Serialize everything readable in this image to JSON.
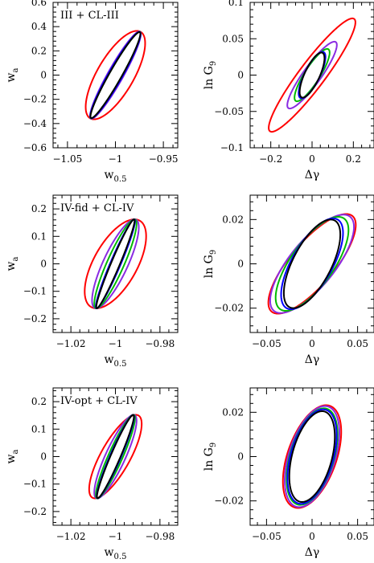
{
  "chart_data": [
    {
      "type": "scatter",
      "panel_label": "III + CL-III",
      "xlabel": "w0.5",
      "xlabel_main": "w",
      "xlabel_sub": "0.5",
      "ylabel": "wa",
      "ylabel_main": "w",
      "ylabel_sub": "a",
      "xlim": [
        -1.065,
        -0.935
      ],
      "ylim": [
        -0.6,
        0.6
      ],
      "xticks": [
        -1.05,
        -1,
        -0.95
      ],
      "xtick_labels": [
        "−1.05",
        "−1",
        "−0.95"
      ],
      "yticks": [
        -0.6,
        -0.4,
        -0.2,
        0,
        0.2,
        0.4,
        0.6
      ],
      "ytick_labels": [
        "−0.6",
        "−0.4",
        "−0.2",
        "0",
        "0.2",
        "0.4",
        "0.6"
      ],
      "ellipses": [
        {
          "color": "#ff0000",
          "cx": -1.0,
          "cy": 0.0,
          "ex": 0.031,
          "ey": 0.0,
          "fx": 0.0,
          "fy": 0.365,
          "a": 0.72
        },
        {
          "color": "#8a2be2",
          "cx": -1.0,
          "cy": 0.0,
          "ex": 0.0265,
          "ey": 0.0,
          "fx": 0.0,
          "fy": 0.36,
          "a": 0.94
        },
        {
          "color": "#00bb00",
          "cx": -1.0,
          "cy": 0.0,
          "ex": 0.0262,
          "ey": 0.0,
          "fx": 0.0,
          "fy": 0.357,
          "a": 0.96
        },
        {
          "color": "#0000ff",
          "cx": -1.0,
          "cy": 0.0,
          "ex": 0.0262,
          "ey": 0.0,
          "fx": 0.0,
          "fy": 0.356,
          "a": 0.95
        },
        {
          "color": "#000000",
          "cx": -1.0,
          "cy": 0.0,
          "ex": 0.026,
          "ey": 0.0,
          "fx": 0.0,
          "fy": 0.355,
          "a": 0.96
        }
      ]
    },
    {
      "type": "scatter",
      "panel_label": "",
      "xlabel": "Δγ",
      "xlabel_main": "Δγ",
      "xlabel_sub": "",
      "ylabel": "ln G9",
      "ylabel_main": "ln G",
      "ylabel_sub": "9",
      "xlim": [
        -0.3,
        0.3
      ],
      "ylim": [
        -0.1,
        0.1
      ],
      "xticks": [
        -0.2,
        0,
        0.2
      ],
      "xtick_labels": [
        "−0.2",
        "0",
        "0.2"
      ],
      "yticks": [
        -0.1,
        -0.05,
        0,
        0.05,
        0.1
      ],
      "ytick_labels": [
        "−0.1",
        "−0.05",
        "0",
        "0.05",
        "0.1"
      ],
      "ellipses": [
        {
          "color": "#ff0000",
          "cx": 0.0,
          "cy": 0.0,
          "ex": 0.21,
          "ey": 0.0,
          "fx": 0.0,
          "fy": 0.078,
          "a": 0.93
        },
        {
          "color": "#8a2be2",
          "cx": 0.0,
          "cy": 0.0,
          "ex": 0.12,
          "ey": 0.0,
          "fx": 0.0,
          "fy": 0.046,
          "a": 0.9
        },
        {
          "color": "#00bb00",
          "cx": 0.0,
          "cy": 0.0,
          "ex": 0.085,
          "ey": 0.0,
          "fx": 0.0,
          "fy": 0.036,
          "a": 0.86
        },
        {
          "color": "#0000ff",
          "cx": 0.0,
          "cy": 0.0,
          "ex": 0.065,
          "ey": 0.0,
          "fx": 0.0,
          "fy": 0.032,
          "a": 0.78
        },
        {
          "color": "#000000",
          "cx": 0.0,
          "cy": 0.0,
          "ex": 0.06,
          "ey": 0.0,
          "fx": 0.0,
          "fy": 0.031,
          "a": 0.75
        }
      ]
    },
    {
      "type": "scatter",
      "panel_label": "IV-fid + CL-IV",
      "xlabel": "w0.5",
      "xlabel_main": "w",
      "xlabel_sub": "0.5",
      "ylabel": "wa",
      "ylabel_main": "w",
      "ylabel_sub": "a",
      "xlim": [
        -1.028,
        -0.972
      ],
      "ylim": [
        -0.25,
        0.25
      ],
      "xticks": [
        -1.02,
        -1,
        -0.98
      ],
      "xtick_labels": [
        "−1.02",
        "−1",
        "−0.98"
      ],
      "yticks": [
        -0.2,
        -0.1,
        0,
        0.1,
        0.2
      ],
      "ytick_labels": [
        "−0.2",
        "−0.1",
        "0",
        "0.1",
        "0.2"
      ],
      "ellipses": [
        {
          "color": "#ff0000",
          "cx": -1.0,
          "cy": 0.0,
          "ex": 0.0138,
          "ey": 0.0,
          "fx": 0.0,
          "fy": 0.162,
          "a": 0.62
        },
        {
          "color": "#8a2be2",
          "cx": -1.0,
          "cy": 0.0,
          "ex": 0.0105,
          "ey": 0.0,
          "fx": 0.0,
          "fy": 0.162,
          "a": 0.82
        },
        {
          "color": "#00bb00",
          "cx": -1.0,
          "cy": 0.0,
          "ex": 0.0095,
          "ey": 0.0,
          "fx": 0.0,
          "fy": 0.162,
          "a": 0.9
        },
        {
          "color": "#0000ff",
          "cx": -1.0,
          "cy": 0.0,
          "ex": 0.0088,
          "ey": 0.0,
          "fx": 0.0,
          "fy": 0.162,
          "a": 0.96
        },
        {
          "color": "#000000",
          "cx": -1.0,
          "cy": 0.0,
          "ex": 0.0086,
          "ey": 0.0,
          "fx": 0.0,
          "fy": 0.162,
          "a": 0.97
        }
      ]
    },
    {
      "type": "scatter",
      "panel_label": "",
      "xlabel": "Δγ",
      "xlabel_main": "Δγ",
      "xlabel_sub": "",
      "ylabel": "ln G9",
      "ylabel_main": "ln G",
      "ylabel_sub": "9",
      "xlim": [
        -0.068,
        0.068
      ],
      "ylim": [
        -0.031,
        0.031
      ],
      "xticks": [
        -0.05,
        0,
        0.05
      ],
      "xtick_labels": [
        "−0.05",
        "0",
        "0.05"
      ],
      "yticks": [
        -0.02,
        0,
        0.02
      ],
      "ytick_labels": [
        "−0.02",
        "0",
        "0.02"
      ],
      "ellipses": [
        {
          "color": "#ff0000",
          "cx": 0.0,
          "cy": 0.0,
          "ex": 0.048,
          "ey": 0.0,
          "fx": 0.0,
          "fy": 0.0225,
          "a": 0.78
        },
        {
          "color": "#8a2be2",
          "cx": 0.0,
          "cy": 0.0,
          "ex": 0.046,
          "ey": 0.0,
          "fx": 0.0,
          "fy": 0.0222,
          "a": 0.75
        },
        {
          "color": "#00bb00",
          "cx": 0.0,
          "cy": 0.0,
          "ex": 0.04,
          "ey": 0.0,
          "fx": 0.0,
          "fy": 0.0212,
          "a": 0.72
        },
        {
          "color": "#0000ff",
          "cx": 0.0,
          "cy": 0.0,
          "ex": 0.034,
          "ey": 0.0,
          "fx": 0.0,
          "fy": 0.0205,
          "a": 0.68
        },
        {
          "color": "#000000",
          "cx": 0.0,
          "cy": 0.0,
          "ex": 0.031,
          "ey": 0.0,
          "fx": 0.0,
          "fy": 0.02,
          "a": 0.66
        }
      ]
    },
    {
      "type": "scatter",
      "panel_label": "IV-opt + CL-IV",
      "xlabel": "w0.5",
      "xlabel_main": "w",
      "xlabel_sub": "0.5",
      "ylabel": "wa",
      "ylabel_main": "w",
      "ylabel_sub": "a",
      "xlim": [
        -1.028,
        -0.972
      ],
      "ylim": [
        -0.25,
        0.25
      ],
      "xticks": [
        -1.02,
        -1,
        -0.98
      ],
      "xtick_labels": [
        "−1.02",
        "−1",
        "−0.98"
      ],
      "yticks": [
        -0.2,
        -0.1,
        0,
        0.1,
        0.2
      ],
      "ytick_labels": [
        "−0.2",
        "−0.1",
        "0",
        "0.1",
        "0.2"
      ],
      "ellipses": [
        {
          "color": "#ff0000",
          "cx": -1.0,
          "cy": 0.0,
          "ex": 0.0118,
          "ey": 0.0,
          "fx": 0.0,
          "fy": 0.152,
          "a": 0.78
        },
        {
          "color": "#8a2be2",
          "cx": -1.0,
          "cy": 0.0,
          "ex": 0.0095,
          "ey": 0.0,
          "fx": 0.0,
          "fy": 0.152,
          "a": 0.86
        },
        {
          "color": "#00bb00",
          "cx": -1.0,
          "cy": 0.0,
          "ex": 0.0088,
          "ey": 0.0,
          "fx": 0.0,
          "fy": 0.152,
          "a": 0.92
        },
        {
          "color": "#0000ff",
          "cx": -1.0,
          "cy": 0.0,
          "ex": 0.0084,
          "ey": 0.0,
          "fx": 0.0,
          "fy": 0.152,
          "a": 0.95
        },
        {
          "color": "#000000",
          "cx": -1.0,
          "cy": 0.0,
          "ex": 0.0083,
          "ey": 0.0,
          "fx": 0.0,
          "fy": 0.152,
          "a": 0.96
        }
      ]
    },
    {
      "type": "scatter",
      "panel_label": "",
      "xlabel": "Δγ",
      "xlabel_main": "Δγ",
      "xlabel_sub": "",
      "ylabel": "ln G9",
      "ylabel_main": "ln G",
      "ylabel_sub": "9",
      "xlim": [
        -0.068,
        0.068
      ],
      "ylim": [
        -0.031,
        0.031
      ],
      "xticks": [
        -0.05,
        0,
        0.05
      ],
      "xtick_labels": [
        "−0.05",
        "0",
        "0.05"
      ],
      "yticks": [
        -0.02,
        0,
        0.02
      ],
      "ytick_labels": [
        "−0.02",
        "0",
        "0.02"
      ],
      "ellipses": [
        {
          "color": "#ff0000",
          "cx": 0.0,
          "cy": 0.0,
          "ex": 0.032,
          "ey": 0.0,
          "fx": 0.0,
          "fy": 0.0232,
          "a": 0.48
        },
        {
          "color": "#8a2be2",
          "cx": 0.0,
          "cy": 0.0,
          "ex": 0.03,
          "ey": 0.0,
          "fx": 0.0,
          "fy": 0.0228,
          "a": 0.47
        },
        {
          "color": "#00bb00",
          "cx": 0.0,
          "cy": 0.0,
          "ex": 0.028,
          "ey": 0.0,
          "fx": 0.0,
          "fy": 0.0218,
          "a": 0.46
        },
        {
          "color": "#0000ff",
          "cx": 0.0,
          "cy": 0.0,
          "ex": 0.027,
          "ey": 0.0,
          "fx": 0.0,
          "fy": 0.0213,
          "a": 0.45
        },
        {
          "color": "#000000",
          "cx": 0.0,
          "cy": 0.0,
          "ex": 0.025,
          "ey": 0.0,
          "fx": 0.0,
          "fy": 0.0205,
          "a": 0.44
        }
      ]
    }
  ]
}
